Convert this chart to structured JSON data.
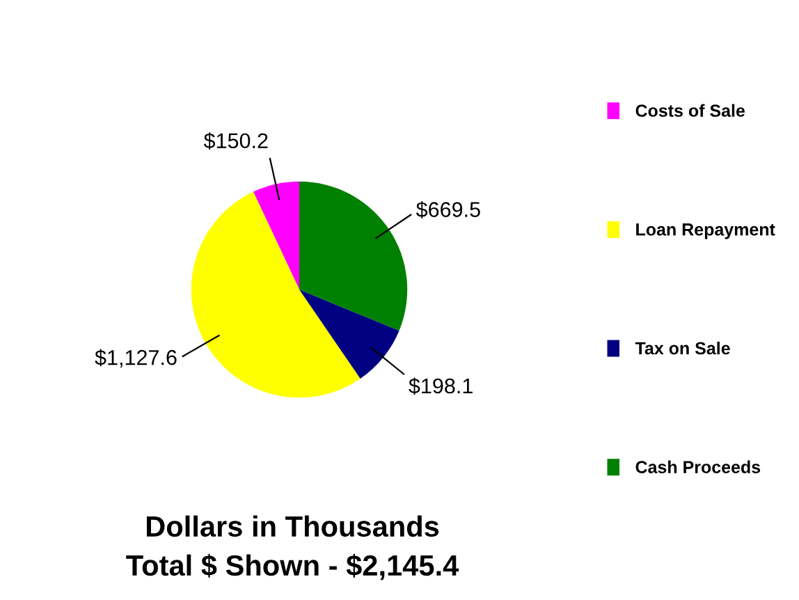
{
  "chart_data": {
    "type": "pie",
    "title": "Dollars in Thousands",
    "subtitle": "Total $ Shown - $2,145.4",
    "categories": [
      "Costs of Sale",
      "Loan Repayment",
      "Tax on Sale",
      "Cash Proceeds"
    ],
    "values": [
      150.2,
      1127.6,
      198.1,
      669.5
    ],
    "colors": [
      "#ff00ff",
      "#ffff00",
      "#000080",
      "#008000"
    ],
    "value_labels": [
      "$150.2",
      "$1,127.6",
      "$198.1",
      "$669.5"
    ],
    "legend": "right"
  }
}
